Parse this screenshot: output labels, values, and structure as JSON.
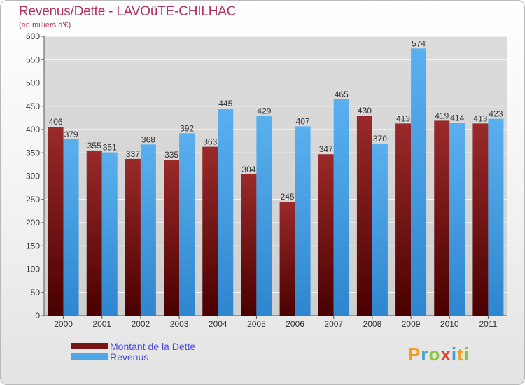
{
  "header": {
    "title": "Revenus/Dette - LAVOûTE-CHILHAC",
    "subtitle": "(en milliers d'€)"
  },
  "chart_data": {
    "type": "bar",
    "title": "Revenus/Dette - LAVOûTE-CHILHAC",
    "ylabel": "(en milliers d'€)",
    "categories": [
      "2000",
      "2001",
      "2002",
      "2003",
      "2004",
      "2005",
      "2006",
      "2007",
      "2008",
      "2009",
      "2010",
      "2011"
    ],
    "series": [
      {
        "name": "Montant de la Dette",
        "color": "#7a1515",
        "values": [
          406,
          355,
          337,
          335,
          363,
          304,
          245,
          347,
          430,
          413,
          419,
          413
        ]
      },
      {
        "name": "Revenus",
        "color": "#4ea6e6",
        "values": [
          379,
          351,
          368,
          392,
          445,
          429,
          407,
          465,
          370,
          574,
          414,
          423
        ]
      }
    ],
    "ylim": [
      0,
      600
    ],
    "yticks": [
      0,
      50,
      100,
      150,
      200,
      250,
      300,
      350,
      400,
      450,
      500,
      550,
      600
    ],
    "grid": true,
    "legend": "bottom-left"
  },
  "legend": {
    "items": [
      {
        "label": "Montant de la Dette",
        "color": "#7a1515"
      },
      {
        "label": "Revenus",
        "color": "#4ea6e6"
      }
    ]
  },
  "logo": {
    "letters": [
      "P",
      "r",
      "o",
      "x",
      "i",
      "t",
      "i"
    ],
    "colors": [
      "#f0a020",
      "#3aa0d8",
      "#8cc63f",
      "#e8402a",
      "#3aa0d8",
      "#f0a020",
      "#8cc63f"
    ]
  }
}
